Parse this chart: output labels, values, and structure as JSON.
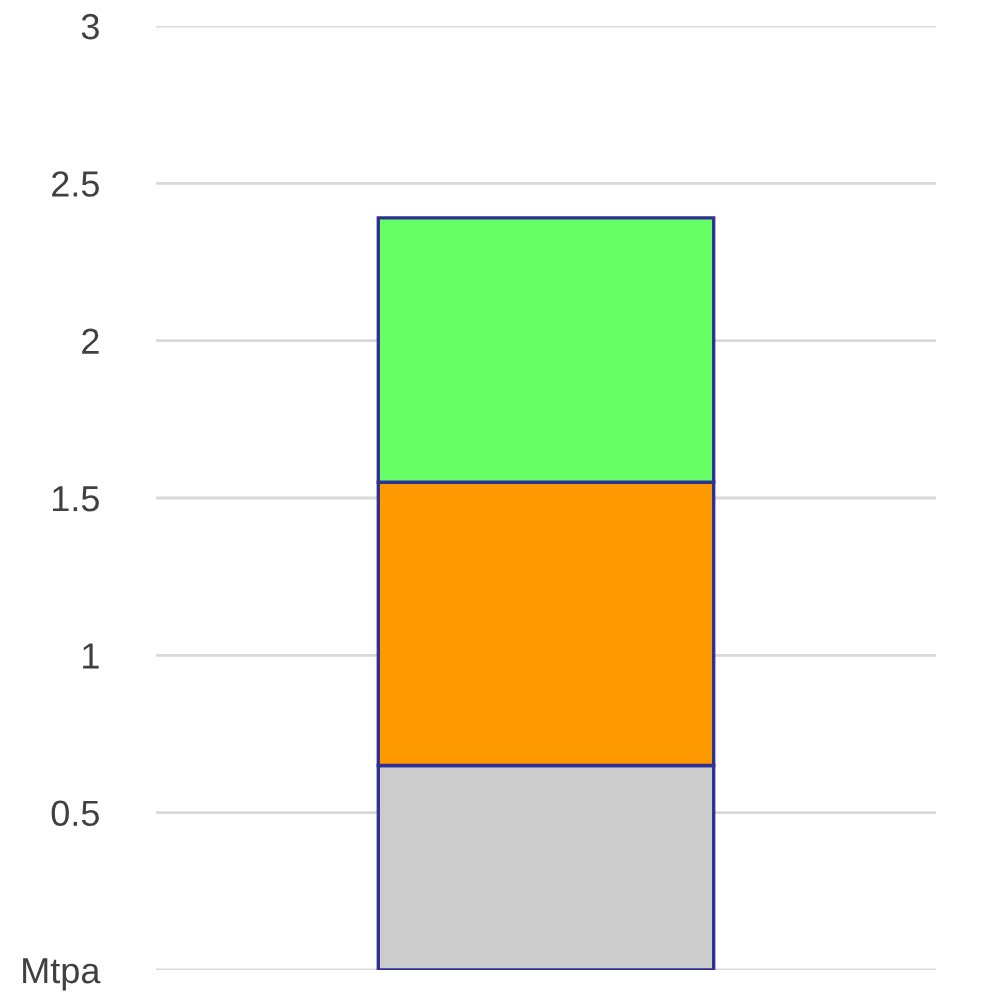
{
  "chart_data": {
    "type": "bar",
    "stacked": true,
    "categories": [
      null
    ],
    "series": [
      {
        "color": "#cccccc",
        "values": [
          0.65
        ]
      },
      {
        "color": "#ff9900",
        "values": [
          0.9
        ]
      },
      {
        "color": "#66ff66",
        "values": [
          0.84
        ]
      }
    ],
    "ylim": [
      0,
      3
    ],
    "yticks": [
      {
        "value": 0,
        "label": "Mtpa"
      },
      0.5,
      1,
      1.5,
      2,
      2.5,
      3
    ],
    "grid": "y"
  }
}
